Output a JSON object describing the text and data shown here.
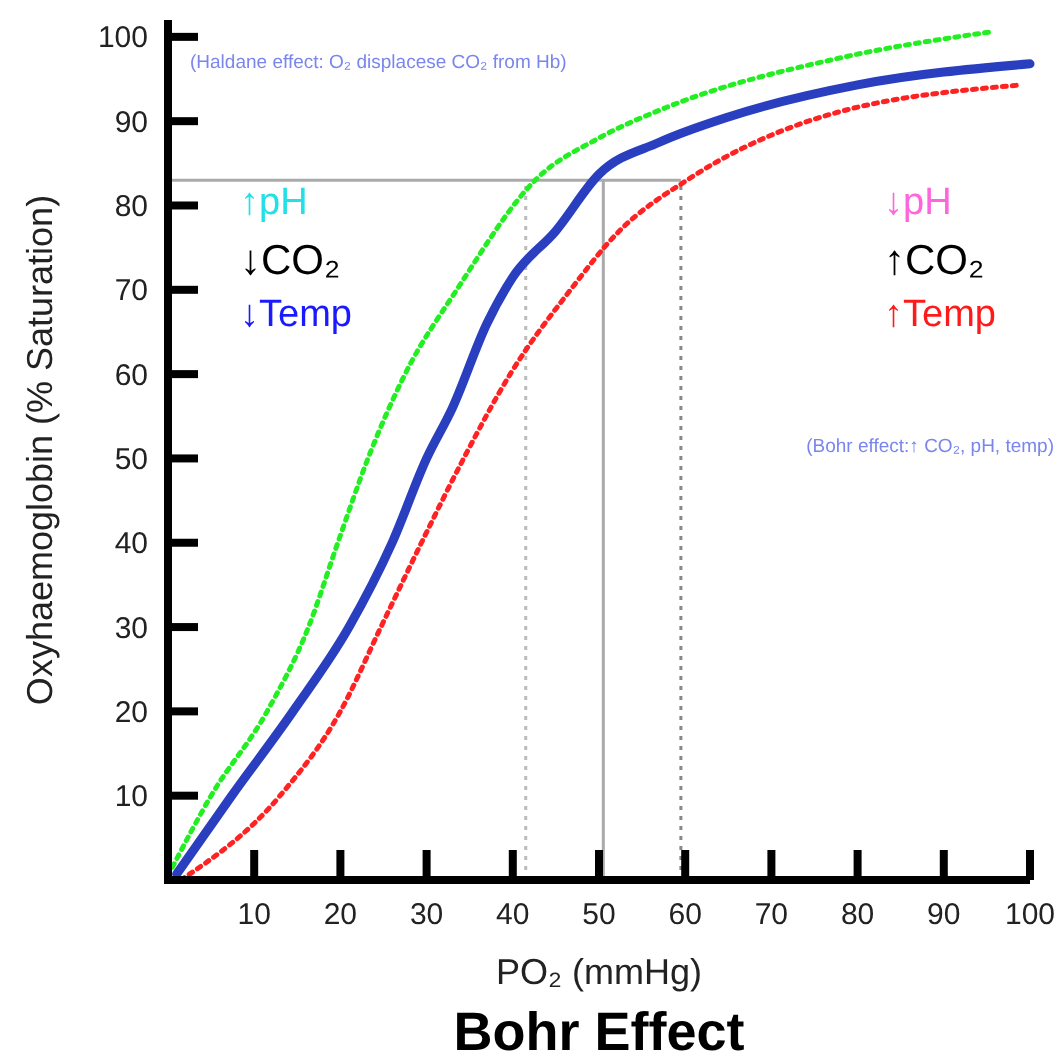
{
  "chart_data": {
    "type": "line",
    "title": "Bohr Effect",
    "xlabel": "PO₂ (mmHg)",
    "ylabel": "Oxyhaemoglobin (% Saturation)",
    "xlim": [
      0,
      100
    ],
    "ylim": [
      0,
      102
    ],
    "xticks": [
      10,
      20,
      30,
      40,
      50,
      60,
      70,
      80,
      90,
      100
    ],
    "yticks": [
      10,
      20,
      30,
      40,
      50,
      60,
      70,
      80,
      90,
      100
    ],
    "series": [
      {
        "color": "#22ee22",
        "line_style": "dotted",
        "x": [
          0.5,
          5,
          11.5,
          16.3,
          19.7,
          23.2,
          27.5,
          33.5,
          42.8,
          50,
          58,
          77.5,
          95.5
        ],
        "values": [
          1.5,
          10,
          20,
          30,
          40,
          50,
          60,
          70,
          83.2,
          88,
          91.7,
          97.4,
          100.6
        ]
      },
      {
        "color": "#ff2222",
        "line_style": "dotted",
        "x": [
          1.5,
          13,
          20,
          24.7,
          29.4,
          34.3,
          39.7,
          46.7,
          52,
          60.5,
          73.7,
          99
        ],
        "values": [
          0,
          10,
          20,
          30,
          40,
          50,
          60,
          70,
          76.6,
          83.2,
          89.8,
          94.3
        ]
      },
      {
        "color": "#2a3fbf",
        "line_style": "solid",
        "x": [
          1,
          7.4,
          14.5,
          21,
          26,
          30,
          33,
          37,
          40,
          45,
          50,
          57,
          65,
          80,
          100
        ],
        "values": [
          0.7,
          10,
          20,
          30,
          40,
          50,
          56,
          66,
          71.5,
          77,
          83.7,
          87.5,
          90.5,
          94.3,
          96.8
        ]
      }
    ],
    "ref_lines": [
      {
        "axis": "y",
        "value": 83,
        "color": "#aaaaaa",
        "line_style": "solid"
      },
      {
        "axis": "x",
        "value": 41.5,
        "color": "#bbbbbb",
        "line_style": "dotted"
      },
      {
        "axis": "x",
        "value": 50.5,
        "color": "#aaaaaa",
        "line_style": "solid"
      },
      {
        "axis": "x",
        "value": 59.5,
        "color": "#888888",
        "line_style": "dotted"
      }
    ],
    "annotations": [
      "(Haldane effect: O₂ displacese CO₂ from Hb)",
      "(Bohr effect:↑ CO₂, pH, temp)",
      "↑pH",
      "↓CO₂",
      "↓Temp",
      "↓pH",
      "↑CO₂",
      "↑Temp"
    ]
  }
}
